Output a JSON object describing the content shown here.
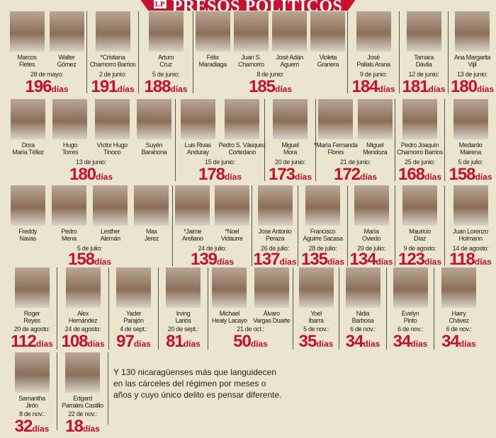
{
  "header": {
    "logo": "LP",
    "title": "PRESOS POLÍTICOS"
  },
  "day_unit": "días",
  "accent_color": "#c8102e",
  "rows": [
    {
      "groups": [
        {
          "people": [
            "Marcos\nFletes",
            "Walter\nGómez"
          ],
          "date": "28 de mayo:",
          "days": "196"
        },
        {
          "people": [
            "*Cristiana\nChamorro Barrios"
          ],
          "date": "2 de junio:",
          "days": "191"
        },
        {
          "people": [
            "Arturo\nCruz"
          ],
          "date": "5 de junio:",
          "days": "188"
        },
        {
          "people": [
            "Félix\nMaradiaga",
            "Juan S.\nChamorro",
            "José Adán\nAguerri",
            "Violeta\nGranera"
          ],
          "date": "8 de junio:",
          "days": "185"
        },
        {
          "people": [
            "José\nPallais Arana"
          ],
          "date": "9 de junio:",
          "days": "184"
        },
        {
          "people": [
            "Tamara\nDávila"
          ],
          "date": "12 de junio:",
          "days": "181"
        },
        {
          "people": [
            "Ana Margarita\nVijil"
          ],
          "date": "13 de junio:",
          "days": "180"
        }
      ]
    },
    {
      "groups": [
        {
          "people": [
            "Dora\nMaría Téllez",
            "Hugo\nTorres",
            "Víctor Hugo\nTinoco",
            "Suyén\nBarahona"
          ],
          "date": "13 de junio:",
          "days": "180"
        },
        {
          "people": [
            "Luis Rivas\nAnduray",
            "Pedro S. Vásquez\nCortedano"
          ],
          "date": "15 de junio:",
          "days": "178"
        },
        {
          "people": [
            "Miguel\nMora"
          ],
          "date": "20 de junio:",
          "days": "173"
        },
        {
          "people": [
            "*María Fernanda\nFlores",
            "Miguel\nMendoza"
          ],
          "date": "21 de junio:",
          "days": "172"
        },
        {
          "people": [
            "Pedro Joaquín\nChamorro Barrios"
          ],
          "date": "25 de junio:",
          "days": "168"
        },
        {
          "people": [
            "Medardo\nMairena"
          ],
          "date": "5 de julio:",
          "days": "158"
        }
      ]
    },
    {
      "groups": [
        {
          "people": [
            "Freddy\nNavas",
            "Pedro\nMena",
            "Lesther\nAlemán",
            "Max\nJerez"
          ],
          "date": "5 de julio:",
          "days": "158"
        },
        {
          "people": [
            "*Jaime\nArellano",
            "*Noel\nVidaurre"
          ],
          "date": "24 de julio:",
          "days": "139"
        },
        {
          "people": [
            "Jose Antonio\nPeraza"
          ],
          "date": "26 de julio:",
          "days": "137"
        },
        {
          "people": [
            "Francisco\nAguirre Sacasa"
          ],
          "date": "28 de julio:",
          "days": "135"
        },
        {
          "people": [
            "María\nOviedo"
          ],
          "date": "29 de julio:",
          "days": "134"
        },
        {
          "people": [
            "Mauricio\nDíaz"
          ],
          "date": "9 de agosto:",
          "days": "123"
        },
        {
          "people": [
            "Juan Lorenzo\nHolmann"
          ],
          "date": "14 de agosto:",
          "days": "118"
        }
      ]
    },
    {
      "groups": [
        {
          "people": [
            "Roger\nReyes"
          ],
          "date": "20 de agosto:",
          "days": "112"
        },
        {
          "people": [
            "Alex\nHernández"
          ],
          "date": "24 de agosto:",
          "days": "108"
        },
        {
          "people": [
            "Yader\nParajón"
          ],
          "date": "4 de sept.:",
          "days": "97"
        },
        {
          "people": [
            "Irving\nLarios"
          ],
          "date": "20 de sept.:",
          "days": "81"
        },
        {
          "people": [
            "Michael\nHealy Lacayo",
            "Álvaro\nVargas Duarte"
          ],
          "date": "21 de oct.:",
          "days": "50"
        },
        {
          "people": [
            "Yoel\nIbarra"
          ],
          "date": "5 de nov.:",
          "days": "35"
        },
        {
          "people": [
            "Nidia\nBarbosa"
          ],
          "date": "6 de nov.:",
          "days": "34"
        },
        {
          "people": [
            "Evelyn\nPinto"
          ],
          "date": "6 de nov.:",
          "days": "34"
        },
        {
          "people": [
            "Harry\nChávez"
          ],
          "date": "6 de nov.:",
          "days": "34"
        }
      ]
    },
    {
      "groups": [
        {
          "people": [
            "Samantha\nJirón"
          ],
          "date": "8 de nov.:",
          "days": "32"
        },
        {
          "people": [
            "Edgard\nParrales Castillo"
          ],
          "date": "22 de nov.:",
          "days": "18"
        }
      ]
    }
  ],
  "note": "Y 130 nicaragüenses más que languidecen en las cárceles del régimen por meses o años y cuyo único delito es pensar diferente."
}
